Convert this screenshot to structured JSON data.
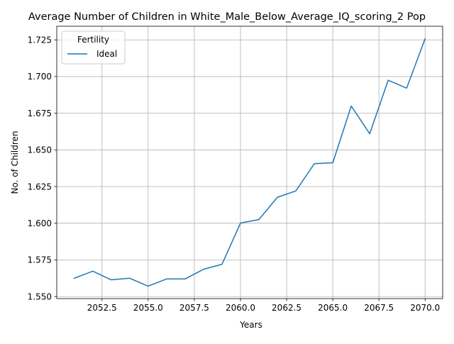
{
  "chart_data": {
    "type": "line",
    "title": "Average Number of Children in White_Male_Below_Average_IQ_scoring_2 Pop",
    "xlabel": "Years",
    "ylabel": "No. of Children",
    "xlim": [
      2050.05,
      2070.95
    ],
    "ylim": [
      1.5486,
      1.7343
    ],
    "x_ticks": [
      2052.5,
      2055.0,
      2057.5,
      2060.0,
      2062.5,
      2065.0,
      2067.5,
      2070.0
    ],
    "x_tick_labels": [
      "2052.5",
      "2055.0",
      "2057.5",
      "2060.0",
      "2062.5",
      "2065.0",
      "2067.5",
      "2070.0"
    ],
    "y_ticks": [
      1.55,
      1.575,
      1.6,
      1.625,
      1.65,
      1.675,
      1.7,
      1.725
    ],
    "y_tick_labels": [
      "1.550",
      "1.575",
      "1.600",
      "1.625",
      "1.650",
      "1.675",
      "1.700",
      "1.725"
    ],
    "grid": true,
    "legend": {
      "title": "Fertility",
      "placement": "upper-left"
    },
    "x": [
      2051,
      2052,
      2053,
      2054,
      2055,
      2056,
      2057,
      2058,
      2059,
      2060,
      2061,
      2062,
      2063,
      2064,
      2065,
      2066,
      2067,
      2068,
      2069,
      2070
    ],
    "series": [
      {
        "name": "Ideal",
        "color": "#1f77b4",
        "values": [
          1.5625,
          1.5673,
          1.5614,
          1.5625,
          1.5571,
          1.562,
          1.562,
          1.5686,
          1.572,
          1.6001,
          1.6025,
          1.6177,
          1.622,
          1.6406,
          1.6412,
          1.6799,
          1.661,
          1.6975,
          1.6921,
          1.7258
        ]
      }
    ]
  }
}
